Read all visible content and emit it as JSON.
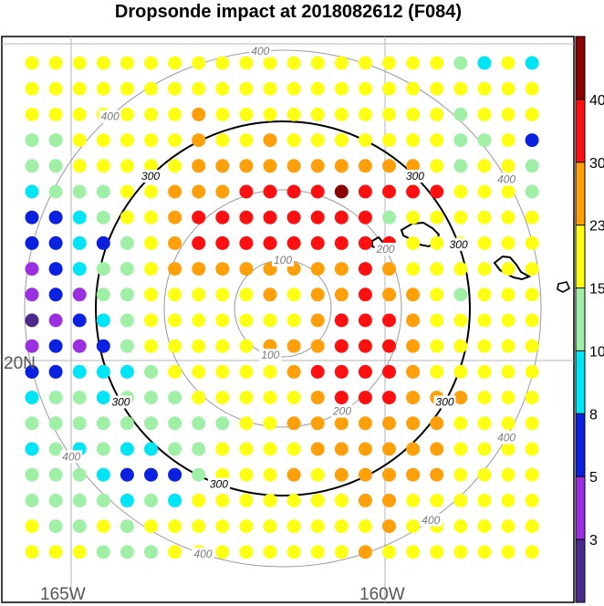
{
  "chart_data": {
    "type": "scatter",
    "title": "Dropsonde impact at 2018082612 (F084)",
    "x_labels": [
      "165W",
      "160W"
    ],
    "y_labels": [
      "20N"
    ],
    "grid": true,
    "rings": {
      "values": [
        100,
        200,
        300,
        400
      ],
      "bold_value": 300
    },
    "colorbar": {
      "bounds": [
        0,
        3,
        5,
        8,
        10,
        15,
        23,
        30,
        40,
        50
      ],
      "tick_labels": [
        "3",
        "5",
        "8",
        "10",
        "15",
        "23",
        "30",
        "40"
      ],
      "colors": [
        "#4b2a8c",
        "#9b30e0",
        "#0a22e0",
        "#00e5f5",
        "#9ff0a6",
        "#ffff14",
        "#ff9f0a",
        "#ff1010",
        "#8b0000"
      ]
    },
    "legend": "right",
    "grid_rows": [
      [
        15,
        15,
        15,
        15,
        15,
        15,
        15,
        15,
        15,
        15,
        15,
        15,
        15,
        15,
        15,
        15,
        15,
        15,
        12,
        8,
        15,
        8
      ],
      [
        15,
        15,
        15,
        15,
        15,
        15,
        15,
        15,
        15,
        15,
        15,
        15,
        15,
        15,
        15,
        15,
        15,
        15,
        15,
        15,
        15,
        15
      ],
      [
        15,
        15,
        15,
        15,
        15,
        15,
        15,
        25,
        15,
        15,
        15,
        15,
        15,
        15,
        15,
        15,
        15,
        15,
        12,
        15,
        15,
        15
      ],
      [
        12,
        12,
        15,
        15,
        15,
        15,
        15,
        25,
        15,
        15,
        25,
        15,
        15,
        15,
        15,
        15,
        15,
        15,
        12,
        12,
        15,
        6
      ],
      [
        12,
        12,
        15,
        15,
        15,
        15,
        15,
        25,
        25,
        25,
        25,
        25,
        25,
        25,
        25,
        25,
        25,
        15,
        12,
        15,
        15,
        12
      ],
      [
        8,
        12,
        12,
        12,
        15,
        15,
        25,
        25,
        25,
        35,
        35,
        35,
        35,
        45,
        35,
        35,
        35,
        35,
        15,
        15,
        15,
        12
      ],
      [
        6,
        6,
        8,
        12,
        15,
        15,
        25,
        35,
        35,
        35,
        35,
        35,
        35,
        35,
        35,
        12,
        15,
        15,
        15,
        15,
        15,
        15
      ],
      [
        6,
        6,
        8,
        6,
        12,
        15,
        25,
        35,
        35,
        35,
        35,
        35,
        35,
        35,
        35,
        35,
        15,
        15,
        15,
        15,
        15,
        15
      ],
      [
        4,
        6,
        8,
        12,
        12,
        15,
        25,
        25,
        25,
        25,
        25,
        25,
        25,
        25,
        35,
        25,
        15,
        15,
        15,
        15,
        15,
        15
      ],
      [
        4,
        6,
        4,
        12,
        12,
        15,
        15,
        15,
        15,
        15,
        25,
        15,
        25,
        25,
        35,
        25,
        25,
        15,
        12,
        15,
        15,
        15
      ],
      [
        2,
        4,
        6,
        8,
        12,
        15,
        15,
        15,
        15,
        15,
        15,
        15,
        25,
        35,
        35,
        35,
        25,
        15,
        15,
        15,
        15,
        15
      ],
      [
        4,
        6,
        4,
        6,
        12,
        15,
        15,
        15,
        15,
        15,
        25,
        25,
        25,
        35,
        35,
        35,
        25,
        15,
        15,
        15,
        15,
        15
      ],
      [
        6,
        6,
        8,
        8,
        8,
        12,
        15,
        15,
        15,
        15,
        15,
        25,
        35,
        35,
        35,
        35,
        25,
        15,
        15,
        15,
        15,
        15
      ],
      [
        8,
        12,
        12,
        8,
        12,
        12,
        12,
        15,
        15,
        15,
        15,
        15,
        25,
        35,
        35,
        35,
        25,
        25,
        25,
        15,
        15,
        15
      ],
      [
        12,
        12,
        12,
        12,
        12,
        12,
        12,
        12,
        12,
        15,
        15,
        25,
        25,
        25,
        25,
        25,
        25,
        25,
        15,
        15,
        15,
        15
      ],
      [
        8,
        12,
        8,
        12,
        8,
        8,
        12,
        12,
        15,
        15,
        15,
        15,
        25,
        25,
        25,
        25,
        25,
        25,
        15,
        15,
        15,
        15
      ],
      [
        12,
        12,
        12,
        8,
        6,
        6,
        6,
        12,
        15,
        15,
        15,
        25,
        15,
        25,
        25,
        25,
        25,
        25,
        15,
        15,
        15,
        15
      ],
      [
        12,
        12,
        12,
        12,
        8,
        12,
        8,
        15,
        15,
        15,
        15,
        15,
        15,
        15,
        25,
        25,
        15,
        15,
        15,
        15,
        15,
        15
      ],
      [
        15,
        12,
        12,
        15,
        12,
        15,
        15,
        15,
        15,
        15,
        15,
        15,
        15,
        15,
        15,
        25,
        15,
        15,
        15,
        15,
        15,
        15
      ],
      [
        15,
        15,
        15,
        12,
        12,
        12,
        15,
        15,
        15,
        15,
        15,
        15,
        15,
        15,
        25,
        15,
        15,
        15,
        15,
        15,
        15,
        15
      ]
    ]
  }
}
